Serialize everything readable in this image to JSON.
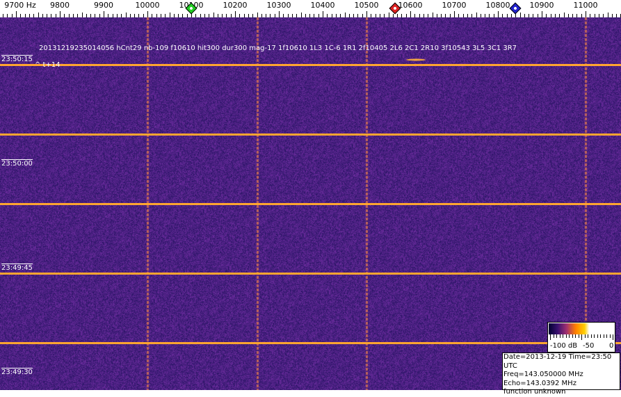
{
  "frequency_axis": {
    "labels": [
      "9700 Hz",
      "9800",
      "9900",
      "10000",
      "10100",
      "10200",
      "10300",
      "10400",
      "10500",
      "10600",
      "10700",
      "10800",
      "10900",
      "11000"
    ],
    "values": [
      9700,
      9800,
      9900,
      10000,
      10100,
      10200,
      10300,
      10400,
      10500,
      10600,
      10700,
      10800,
      10900,
      11000
    ],
    "markers": [
      {
        "name": "green-marker",
        "freq": 10100,
        "color": "#22cc22"
      },
      {
        "name": "red-marker",
        "freq": 10565,
        "color": "#dd2222"
      },
      {
        "name": "blue-marker",
        "freq": 10840,
        "color": "#2222cc"
      }
    ]
  },
  "waterfall": {
    "time_labels": [
      "23:50:15",
      "23:50:00",
      "23:49:45",
      "23:49:30"
    ],
    "decode_text": "20131219235014056 hCnt29 nb-109 f10610 hit300 dur300 mag-17  1f10610  1L3  1C-6  1R1  2f10405  2L6  2C1  2R10  3f10543  3L5  3C1  3R7",
    "delta_text": "^ t+14",
    "colors": {
      "background": "#3a1a78",
      "line": "#ffa530"
    }
  },
  "colorbar": {
    "labels": [
      "-100 dB",
      "-50",
      "0"
    ]
  },
  "info": {
    "date_time": "Date=2013-12-19 Time=23:50 UTC",
    "freq": "Freq=143.050000 MHz",
    "echo": "Echo=143.0392 MHz",
    "function": "function unknown"
  }
}
